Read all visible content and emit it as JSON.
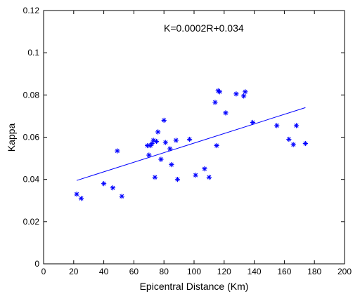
{
  "chart_data": {
    "type": "scatter",
    "title": "",
    "xlabel": "Epicentral Distance (Km)",
    "ylabel": "Kappa",
    "xlim": [
      0,
      200
    ],
    "ylim": [
      0,
      0.12
    ],
    "x_ticks": [
      "0",
      "20",
      "40",
      "60",
      "80",
      "100",
      "120",
      "140",
      "160",
      "180",
      "200"
    ],
    "y_ticks": [
      "0",
      "0.02",
      "0.04",
      "0.06",
      "0.08",
      "0.1",
      "0.12"
    ],
    "annotation": "K=0.0002R+0.034",
    "grid": false,
    "marker_color": "#0000ff",
    "line_color": "#0000ff",
    "fit_line": {
      "x": [
        22,
        174
      ],
      "y": [
        0.0395,
        0.074
      ]
    },
    "series": [
      {
        "marker": "asterisk",
        "x": [
          22,
          25,
          40,
          46,
          49,
          52,
          69,
          70,
          71,
          72,
          73,
          74,
          75,
          76,
          78,
          80,
          81,
          84,
          85,
          88,
          89,
          97,
          101,
          107,
          110,
          114,
          115,
          116,
          117,
          121,
          128,
          133,
          134,
          139,
          155,
          163,
          166,
          168,
          174
        ],
        "y": [
          0.033,
          0.031,
          0.038,
          0.036,
          0.0535,
          0.032,
          0.056,
          0.0515,
          0.056,
          0.057,
          0.0585,
          0.041,
          0.058,
          0.0625,
          0.0495,
          0.068,
          0.0575,
          0.0545,
          0.047,
          0.0585,
          0.04,
          0.059,
          0.042,
          0.045,
          0.041,
          0.0765,
          0.056,
          0.082,
          0.0815,
          0.0715,
          0.0805,
          0.0795,
          0.0815,
          0.067,
          0.0655,
          0.059,
          0.0565,
          0.0655,
          0.057
        ]
      }
    ]
  }
}
